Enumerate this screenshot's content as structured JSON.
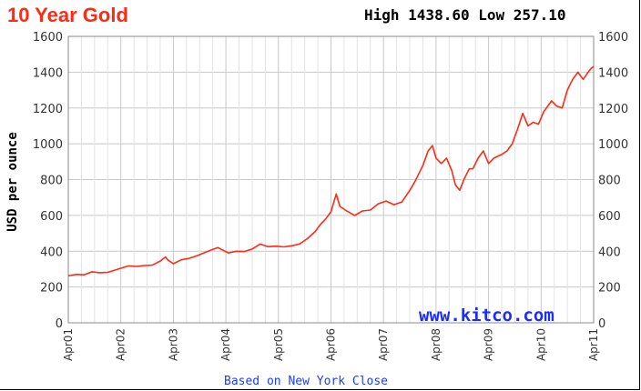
{
  "chart_data": {
    "type": "line",
    "title": "10 Year Gold",
    "subtitle": "High 1438.60 Low 257.10",
    "ylabel": "USD per ounce",
    "xlabel": "Based on New York Close",
    "watermark": "www.kitco.com",
    "ylim": [
      0,
      1600
    ],
    "yticks": [
      0,
      200,
      400,
      600,
      800,
      1000,
      1200,
      1400,
      1600
    ],
    "xlim": [
      2001.25,
      2011.25
    ],
    "xticks": [
      {
        "label": "Apr01",
        "x": 2001.25
      },
      {
        "label": "Apr02",
        "x": 2002.25
      },
      {
        "label": "Apr03",
        "x": 2003.25
      },
      {
        "label": "Apr04",
        "x": 2004.25
      },
      {
        "label": "Apr05",
        "x": 2005.25
      },
      {
        "label": "Apr06",
        "x": 2006.25
      },
      {
        "label": "Apr07",
        "x": 2007.25
      },
      {
        "label": "Apr08",
        "x": 2008.25
      },
      {
        "label": "Apr09",
        "x": 2009.25
      },
      {
        "label": "Apr10",
        "x": 2010.25
      },
      {
        "label": "Apr11",
        "x": 2011.25
      }
    ],
    "grid": true,
    "line_color": "#ff2a14",
    "series": [
      {
        "points": [
          [
            2001.25,
            262
          ],
          [
            2001.4,
            270
          ],
          [
            2001.55,
            268
          ],
          [
            2001.7,
            285
          ],
          [
            2001.85,
            280
          ],
          [
            2002.0,
            282
          ],
          [
            2002.15,
            295
          ],
          [
            2002.25,
            305
          ],
          [
            2002.4,
            318
          ],
          [
            2002.55,
            315
          ],
          [
            2002.7,
            320
          ],
          [
            2002.85,
            322
          ],
          [
            2003.0,
            345
          ],
          [
            2003.1,
            368
          ],
          [
            2003.15,
            350
          ],
          [
            2003.25,
            330
          ],
          [
            2003.4,
            352
          ],
          [
            2003.55,
            360
          ],
          [
            2003.7,
            375
          ],
          [
            2003.85,
            392
          ],
          [
            2004.0,
            410
          ],
          [
            2004.1,
            420
          ],
          [
            2004.2,
            405
          ],
          [
            2004.3,
            390
          ],
          [
            2004.45,
            400
          ],
          [
            2004.6,
            398
          ],
          [
            2004.75,
            412
          ],
          [
            2004.9,
            440
          ],
          [
            2005.05,
            425
          ],
          [
            2005.2,
            428
          ],
          [
            2005.35,
            424
          ],
          [
            2005.5,
            430
          ],
          [
            2005.65,
            440
          ],
          [
            2005.8,
            470
          ],
          [
            2005.95,
            510
          ],
          [
            2006.05,
            550
          ],
          [
            2006.15,
            580
          ],
          [
            2006.25,
            620
          ],
          [
            2006.35,
            720
          ],
          [
            2006.42,
            650
          ],
          [
            2006.55,
            625
          ],
          [
            2006.7,
            600
          ],
          [
            2006.85,
            625
          ],
          [
            2007.0,
            630
          ],
          [
            2007.15,
            665
          ],
          [
            2007.3,
            680
          ],
          [
            2007.45,
            660
          ],
          [
            2007.6,
            675
          ],
          [
            2007.75,
            740
          ],
          [
            2007.85,
            790
          ],
          [
            2008.0,
            880
          ],
          [
            2008.1,
            960
          ],
          [
            2008.18,
            990
          ],
          [
            2008.25,
            920
          ],
          [
            2008.35,
            890
          ],
          [
            2008.45,
            920
          ],
          [
            2008.55,
            850
          ],
          [
            2008.62,
            770
          ],
          [
            2008.7,
            740
          ],
          [
            2008.78,
            800
          ],
          [
            2008.88,
            860
          ],
          [
            2008.95,
            860
          ],
          [
            2009.05,
            920
          ],
          [
            2009.15,
            960
          ],
          [
            2009.25,
            890
          ],
          [
            2009.35,
            920
          ],
          [
            2009.5,
            940
          ],
          [
            2009.6,
            960
          ],
          [
            2009.7,
            1000
          ],
          [
            2009.8,
            1080
          ],
          [
            2009.9,
            1170
          ],
          [
            2010.0,
            1100
          ],
          [
            2010.1,
            1120
          ],
          [
            2010.2,
            1110
          ],
          [
            2010.3,
            1180
          ],
          [
            2010.45,
            1240
          ],
          [
            2010.55,
            1210
          ],
          [
            2010.65,
            1200
          ],
          [
            2010.75,
            1300
          ],
          [
            2010.85,
            1360
          ],
          [
            2010.95,
            1400
          ],
          [
            2011.05,
            1360
          ],
          [
            2011.12,
            1390
          ],
          [
            2011.2,
            1420
          ],
          [
            2011.25,
            1432
          ]
        ]
      }
    ]
  }
}
